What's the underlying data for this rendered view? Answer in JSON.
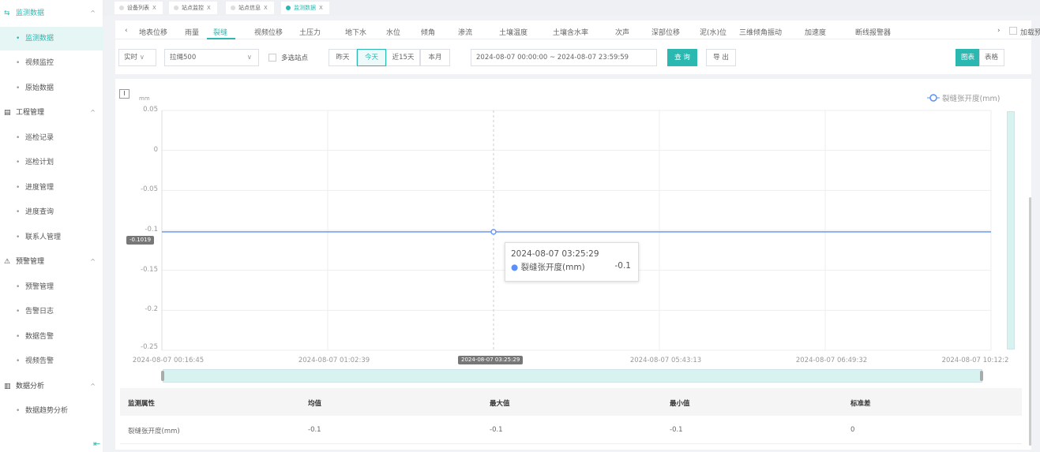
{
  "sidebar": {
    "groups": [
      {
        "label": "监测数据",
        "icon": "monitor-icon",
        "items": [
          "监测数据",
          "视频监控",
          "原始数据"
        ]
      },
      {
        "label": "工程管理",
        "icon": "project-icon",
        "items": [
          "巡检记录",
          "巡检计划",
          "进度管理",
          "进度查询",
          "联系人管理"
        ]
      },
      {
        "label": "预警管理",
        "icon": "alarm-icon",
        "items": [
          "预警管理",
          "告警日志",
          "数据告警",
          "视频告警"
        ]
      },
      {
        "label": "数据分析",
        "icon": "analysis-icon",
        "items": [
          "数据趋势分析"
        ]
      }
    ],
    "active_item": "监测数据",
    "collapse_icon": "menu-fold-icon"
  },
  "tabs": [
    {
      "label": "设备列表",
      "active": false
    },
    {
      "label": "站点监控",
      "active": false
    },
    {
      "label": "站点信息",
      "active": false
    },
    {
      "label": "监测数据",
      "active": true
    }
  ],
  "sensor_tabs": {
    "items": [
      "地表位移",
      "雨量",
      "裂缝",
      "视频位移",
      "土压力",
      "地下水",
      "水位",
      "倾角",
      "渗流",
      "土壤温度",
      "土壤含水率",
      "次声",
      "深部位移",
      "泥(水)位",
      "三维倾角振动",
      "加速度",
      "断线报警器"
    ],
    "active": "裂缝",
    "load_warning_label": "加载预警线"
  },
  "filters": {
    "mode": "实时",
    "station": "拉绳500",
    "multi_station_label": "多选站点",
    "quick_ranges": [
      "昨天",
      "今天",
      "近15天",
      "本月"
    ],
    "active_range": "今天",
    "date_range": "2024-08-07 00:00:00  ~  2024-08-07 23:59:59",
    "query_label": "查 询",
    "export_label": "导 出",
    "view_chart_label": "图表",
    "view_table_label": "表格"
  },
  "chart_data": {
    "type": "line",
    "ylabel": "mm",
    "ylim": [
      -0.25,
      0.05
    ],
    "yticks": [
      "0.05",
      "0",
      "-0.05",
      "-0.1",
      "-0.15",
      "-0.2",
      "-0.25"
    ],
    "categories": [
      "2024-08-07 00:16:45",
      "2024-08-07 01:02:39",
      "2024-08-07 03:25:29",
      "2024-08-07 05:43:13",
      "2024-08-07 06:49:32",
      "2024-08-07 10:12:2"
    ],
    "series": [
      {
        "name": "裂缝张开度(mm)",
        "values": [
          -0.1019,
          -0.1019,
          -0.1019,
          -0.1019,
          -0.1019,
          -0.1019
        ],
        "color": "#5b8ff9"
      }
    ],
    "pointer_y_label": "-0.1019",
    "pointer_x_label": "2024-08-07 03:25:29",
    "tooltip": {
      "time": "2024-08-07 03:25:29",
      "series": "裂缝张开度(mm)",
      "value": "-0.1"
    },
    "legend": "top-right",
    "grid": true
  },
  "stats_table": {
    "headers": [
      "监测属性",
      "均值",
      "最大值",
      "最小值",
      "标准差"
    ],
    "rows": [
      [
        "裂缝张开度(mm)",
        "-0.1",
        "-0.1",
        "-0.1",
        "0"
      ]
    ]
  }
}
